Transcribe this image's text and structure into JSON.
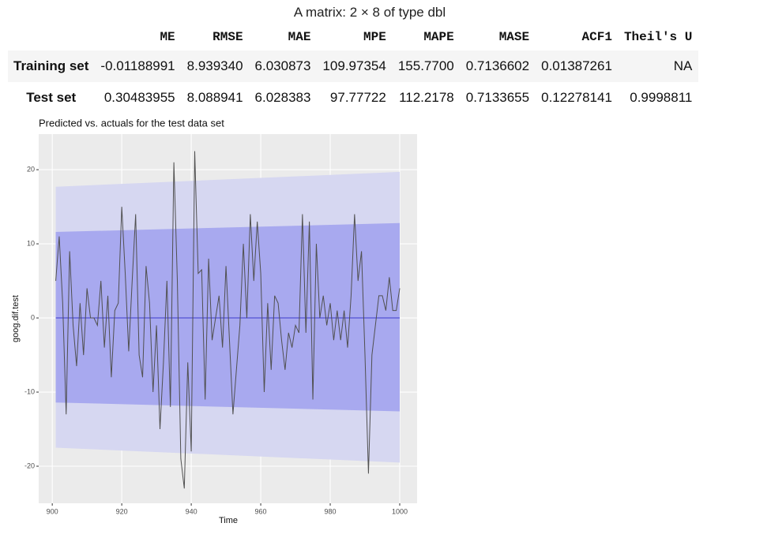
{
  "table": {
    "title": "A matrix: 2 × 8 of type dbl",
    "header": [
      "ME",
      "RMSE",
      "MAE",
      "MPE",
      "MAPE",
      "MASE",
      "ACF1",
      "Theil's U"
    ],
    "rows": [
      [
        "Training set",
        "-0.01188991",
        "8.939340",
        "6.030873",
        "109.97354",
        "155.7700",
        "0.7136602",
        "0.01387261",
        "NA"
      ],
      [
        "Test set",
        "0.30483955",
        "8.088941",
        "6.028383",
        "97.77722",
        "112.2178",
        "0.7133655",
        "0.12278141",
        "0.9998811"
      ]
    ]
  },
  "chart_data": {
    "type": "line",
    "title": "Predicted vs. actuals for the test data set",
    "x_label": "Time",
    "y_label": "goog.dif.test",
    "xlim": [
      896.1,
      1005
    ],
    "ylim": [
      -25,
      24.8
    ],
    "xticks": [
      900,
      920,
      940,
      960,
      980,
      1000
    ],
    "yticks": [
      -20,
      -10,
      0,
      10,
      20
    ],
    "grid": true,
    "bands": [
      {
        "color": "#d6d7f1",
        "x": [
          901,
          1000
        ],
        "lower": [
          -17.5,
          -19.5
        ],
        "upper": [
          17.7,
          19.7
        ]
      },
      {
        "color": "#a8a9ef",
        "x": [
          901,
          1000
        ],
        "lower": [
          -11.4,
          -12.6
        ],
        "upper": [
          11.6,
          12.8
        ]
      }
    ],
    "forecast": {
      "color": "#3b3bcc",
      "x": [
        901,
        1000
      ],
      "values": [
        0,
        0
      ]
    },
    "series": [
      {
        "color": "#505050",
        "x": [
          901,
          902,
          903,
          904,
          905,
          906,
          907,
          908,
          909,
          910,
          911,
          912,
          913,
          914,
          915,
          916,
          917,
          918,
          919,
          920,
          921,
          922,
          923,
          924,
          925,
          926,
          927,
          928,
          929,
          930,
          931,
          932,
          933,
          934,
          935,
          936,
          937,
          938,
          939,
          940,
          941,
          942,
          943,
          944,
          945,
          946,
          947,
          948,
          949,
          950,
          951,
          952,
          953,
          954,
          955,
          956,
          957,
          958,
          959,
          960,
          961,
          962,
          963,
          964,
          965,
          966,
          967,
          968,
          969,
          970,
          971,
          972,
          973,
          974,
          975,
          976,
          977,
          978,
          979,
          980,
          981,
          982,
          983,
          984,
          985,
          986,
          987,
          988,
          989,
          990,
          991,
          992,
          993,
          994,
          995,
          996,
          997,
          998,
          999,
          1000
        ],
        "values": [
          5,
          11,
          2,
          -13,
          9,
          -1,
          -6.5,
          2,
          -5,
          4,
          0,
          0,
          -1,
          5,
          -4,
          3,
          -8,
          1,
          2,
          15,
          6,
          -4.5,
          5,
          14,
          -5,
          -8,
          7,
          2,
          -10,
          -1,
          -15,
          -6,
          5,
          -12,
          21,
          5,
          -19,
          -23,
          -6,
          -18,
          22.5,
          6,
          6.5,
          -11,
          8,
          -3,
          0,
          3,
          -4,
          7,
          -3,
          -13,
          -7,
          -1,
          10,
          0,
          14,
          5,
          13,
          6,
          -10,
          2,
          -7,
          3,
          2,
          -3,
          -7,
          -2,
          -4,
          -1,
          -2,
          14,
          -2,
          13,
          -11,
          10,
          0,
          3,
          -1,
          2,
          -3,
          1,
          -3,
          1,
          -4,
          3,
          14,
          5,
          9,
          -5,
          -21,
          -5,
          -1,
          3,
          3,
          1,
          5.5,
          1,
          1,
          4
        ]
      }
    ]
  }
}
